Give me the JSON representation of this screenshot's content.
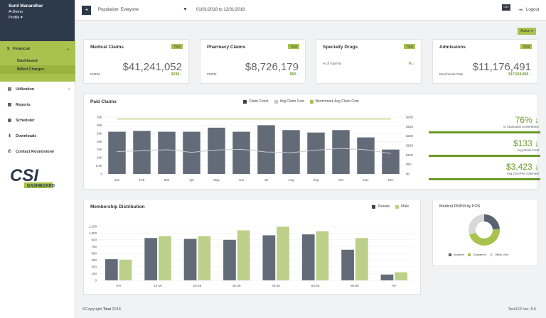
{
  "user": {
    "name": "Sunil Manandhar",
    "role": "A-Demo",
    "profile": "Profile"
  },
  "nav": {
    "financial": "Financial",
    "sub": [
      "Dashboard",
      "Billed Charges"
    ],
    "items": [
      {
        "icon": "utilization-icon",
        "label": "Utilization"
      },
      {
        "icon": "reports-icon",
        "label": "Reports"
      },
      {
        "icon": "scheduler-icon",
        "label": "Scheduler"
      },
      {
        "icon": "downloads-icon",
        "label": "Downloads"
      },
      {
        "icon": "phone-icon",
        "label": "Contact Roundstone"
      }
    ],
    "logo": "CSI",
    "logo_sub": "DASHBOARD"
  },
  "topbar": {
    "population": "Population: Everyone",
    "dates": "01/01/2018 to 12/31/2018",
    "badge": "CSV",
    "logout": "Logout"
  },
  "action": "Action ▾",
  "cards": [
    {
      "title": "Medical Claims",
      "tag": "Total",
      "value": "$41,241,052",
      "label": "PMPM",
      "sub": "$236"
    },
    {
      "title": "Pharmacy Claims",
      "tag": "Total",
      "value": "$8,726,179",
      "label": "PMPM",
      "sub": "$50"
    },
    {
      "title": "Specialty Drugs",
      "tag": "Total",
      "value": "",
      "label": "% of Total Rx",
      "sub": "%"
    },
    {
      "title": "Admissions",
      "tag": "Total",
      "value": "$11,176,491",
      "label": "Benchmark Rate",
      "sub": "$17,914,958"
    }
  ],
  "paid": {
    "title": "Paid Claims",
    "legend": [
      "Claim Count",
      "Avg Claim Cost",
      "Benchmark Avg Claim Cost"
    ]
  },
  "kpis": [
    {
      "value": "76%",
      "label": "% Claimants to Members",
      "fill": 0.76
    },
    {
      "value": "$133",
      "label": "Avg Claim Cost",
      "fill": 1
    },
    {
      "value": "$3,423",
      "label": "Avg Cost Per Claimant",
      "fill": 1
    }
  ],
  "member": {
    "title": "Membership Distribution",
    "legend": [
      "Female",
      "Male"
    ]
  },
  "pmpm": {
    "title": "Medical PMPM by POS",
    "legend": [
      "Inpatient",
      "Outpatient",
      "Office Visit"
    ]
  },
  "footer": {
    "copy": "©Copyright",
    "brand": "Test",
    "year": "2018",
    "version": "Test123 Ver. 8.5"
  },
  "colors": {
    "accent": "#a8c24d",
    "dark": "#646b78",
    "green": "#6a9a27",
    "light": "#bcc9a0"
  },
  "chart_data": [
    {
      "type": "bar",
      "title": "Paid Claims",
      "categories": [
        "Jan",
        "Feb",
        "Mar",
        "Apr",
        "May",
        "Jun",
        "Jul",
        "Aug",
        "Sep",
        "Oct",
        "Nov",
        "Dec"
      ],
      "y_ticks": [
        "0",
        "5.0K",
        "10K",
        "15K",
        "20K",
        "25K",
        "30K",
        "35K"
      ],
      "y2_ticks": [
        "$0",
        "$50",
        "$100",
        "$150",
        "$200",
        "$250",
        "$300"
      ],
      "ylim": [
        0,
        35000
      ],
      "y2lim": [
        0,
        300
      ],
      "series": [
        {
          "name": "Claim Count",
          "values": [
            26000,
            26500,
            26000,
            26000,
            28500,
            26000,
            30000,
            27000,
            25500,
            27000,
            22500,
            15000
          ]
        },
        {
          "name": "Avg Claim Cost",
          "values": [
            118,
            122,
            128,
            114,
            126,
            130,
            116,
            112,
            125,
            135,
            128,
            108
          ]
        },
        {
          "name": "Benchmark Avg Claim Cost",
          "values": [
            290,
            290,
            290,
            290,
            290,
            290,
            290,
            290,
            290,
            290,
            290,
            290
          ]
        }
      ]
    },
    {
      "type": "bar",
      "title": "Membership Distribution",
      "categories": [
        "0-9",
        "10-19",
        "20-29",
        "30-39",
        "40-49",
        "50-59",
        "60-69",
        "70+"
      ],
      "y_ticks": [
        "0",
        "150",
        "300",
        "450",
        "600",
        "750",
        "900",
        "1,050",
        "1,200"
      ],
      "ylim": [
        0,
        1275
      ],
      "series": [
        {
          "name": "Female",
          "values": [
            470,
            940,
            920,
            900,
            1000,
            1020,
            680,
            130
          ]
        },
        {
          "name": "Male",
          "values": [
            460,
            980,
            980,
            1110,
            1190,
            1090,
            940,
            180
          ]
        }
      ]
    },
    {
      "type": "pie",
      "title": "Medical PMPM by POS",
      "labels": [
        "Inpatient",
        "Outpatient",
        "Office Visit"
      ],
      "values": [
        24,
        46,
        30
      ]
    }
  ]
}
